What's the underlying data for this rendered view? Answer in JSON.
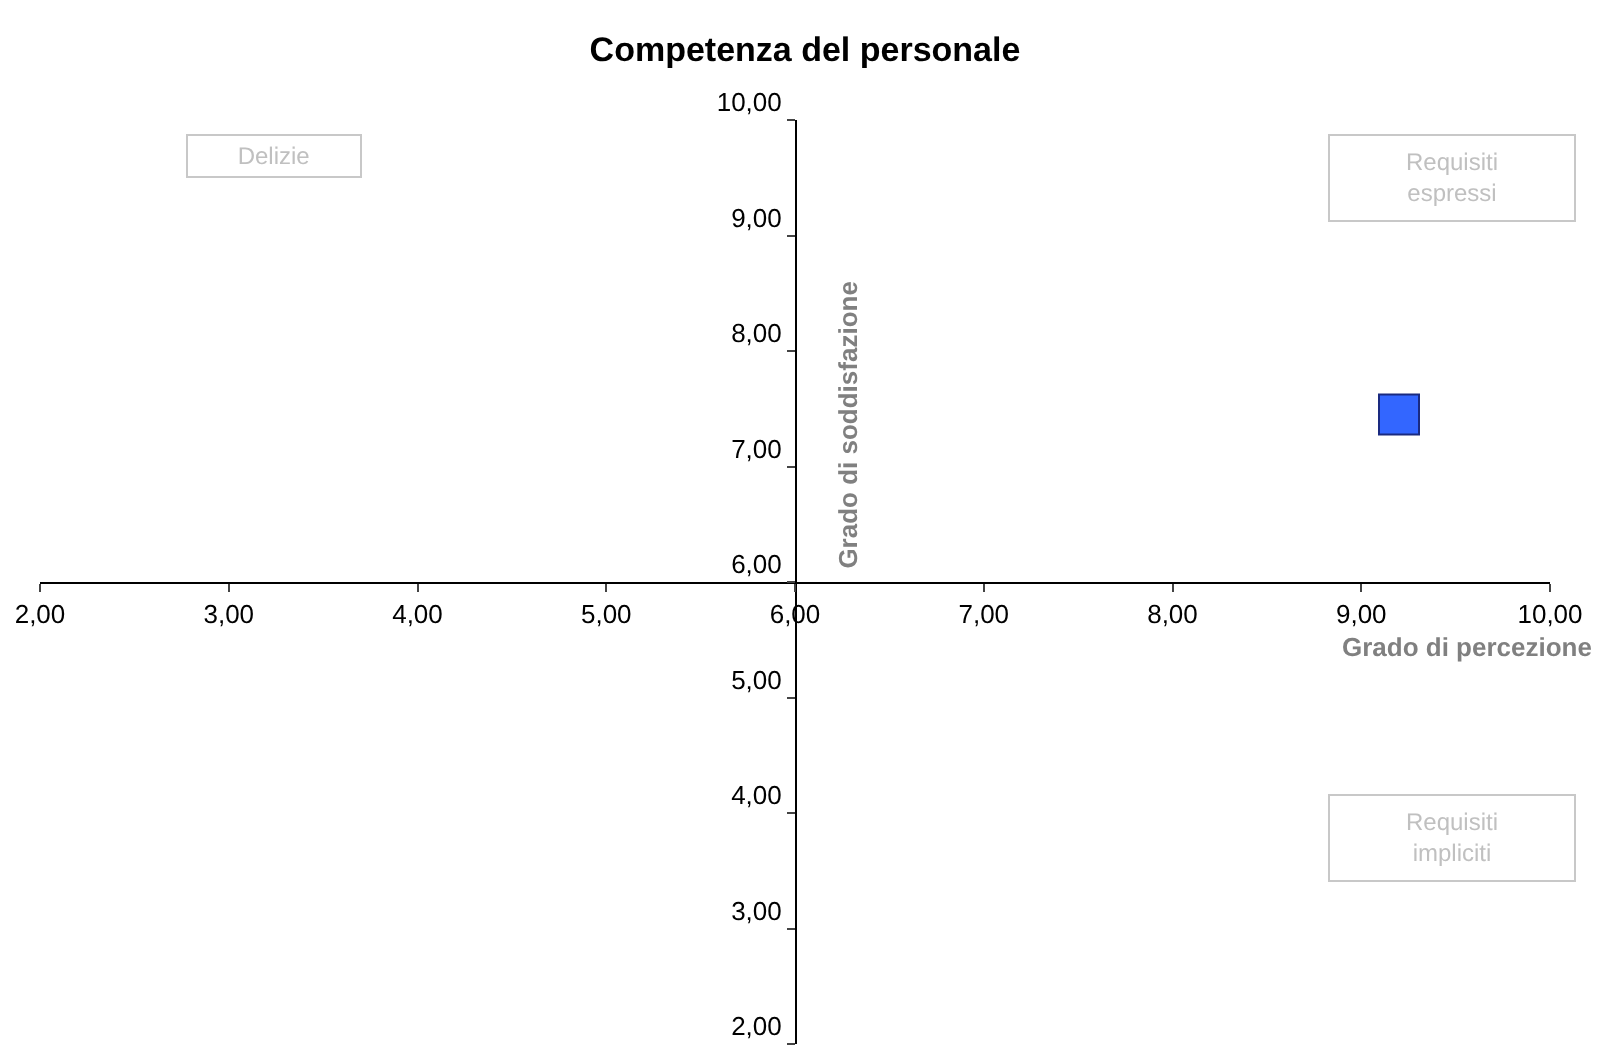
{
  "chart_data": {
    "type": "scatter",
    "title": "Competenza del personale",
    "xlabel": "Grado di percezione",
    "ylabel": "Grado di soddisfazione",
    "x": [
      9.2
    ],
    "values": [
      7.45
    ],
    "color": "#3366ff",
    "marker": "square",
    "xlim": [
      2,
      10
    ],
    "ylim": [
      2,
      10
    ],
    "xticks": [
      {
        "value": 2,
        "label": "2,00"
      },
      {
        "value": 3,
        "label": "3,00"
      },
      {
        "value": 4,
        "label": "4,00"
      },
      {
        "value": 5,
        "label": "5,00"
      },
      {
        "value": 6,
        "label": "6,00"
      },
      {
        "value": 7,
        "label": "7,00"
      },
      {
        "value": 8,
        "label": "8,00"
      },
      {
        "value": 9,
        "label": "9,00"
      },
      {
        "value": 10,
        "label": "10,00"
      }
    ],
    "yticks": [
      {
        "value": 2,
        "label": "2,00"
      },
      {
        "value": 3,
        "label": "3,00"
      },
      {
        "value": 4,
        "label": "4,00"
      },
      {
        "value": 5,
        "label": "5,00"
      },
      {
        "value": 6,
        "label": "6,00"
      },
      {
        "value": 7,
        "label": "7,00"
      },
      {
        "value": 8,
        "label": "8,00"
      },
      {
        "value": 9,
        "label": "9,00"
      },
      {
        "value": 10,
        "label": "10,00"
      }
    ],
    "annotations": [
      "Delizie",
      "Requisiti espressi",
      "Requisiti impliciti"
    ]
  }
}
